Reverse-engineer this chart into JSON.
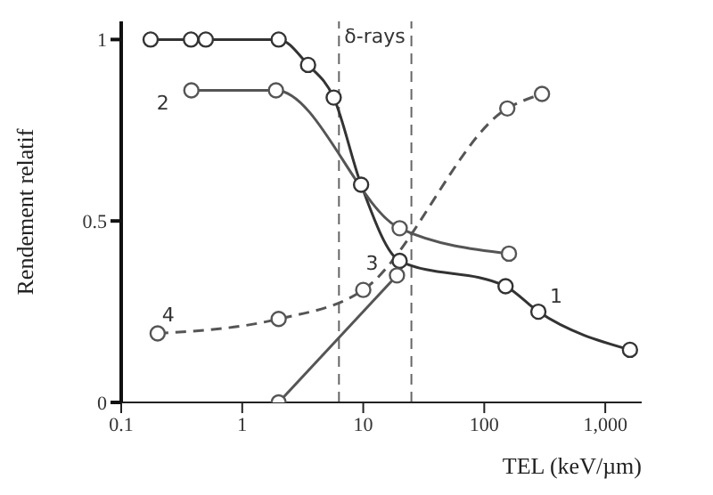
{
  "chart_data": {
    "type": "line",
    "xlabel": "TEL (keV/µm)",
    "ylabel": "Rendement relatif",
    "log": "x",
    "xlim": [
      0.1,
      2000
    ],
    "ylim": [
      0,
      1.05
    ],
    "xticks": [
      0.1,
      1,
      10,
      100,
      {
        "value": 1000,
        "label": "1,000"
      }
    ],
    "yticks": [
      0,
      0.5,
      1
    ],
    "grid": false,
    "legend": false,
    "marker": "circle",
    "series": [
      {
        "name": "1",
        "color": "#333333",
        "x": [
          0.175,
          0.377,
          0.5,
          2,
          3.5,
          5.7,
          9.6,
          20,
          150,
          280,
          1600
        ],
        "values": [
          1,
          1,
          1,
          1,
          0.93,
          0.84,
          0.6,
          0.39,
          0.32,
          0.25,
          0.145
        ]
      },
      {
        "name": "2",
        "color": "#555555",
        "x": [
          0.38,
          1.9,
          20,
          160
        ],
        "values": [
          0.86,
          0.86,
          0.48,
          0.41
        ]
      },
      {
        "name": "3",
        "color": "#555555",
        "x": [
          2,
          19
        ],
        "values": [
          0,
          0.35
        ]
      },
      {
        "name": "4",
        "color": "#555555",
        "line_style": "dashed",
        "x": [
          0.2,
          2,
          10,
          155,
          300
        ],
        "values": [
          0.19,
          0.23,
          0.31,
          0.81,
          0.85
        ]
      }
    ],
    "ref_lines": [
      {
        "axis": "x",
        "value": 6.3,
        "label": "δ-rays",
        "color": "#666666",
        "line_style": "dashed"
      },
      {
        "axis": "x",
        "value": 25,
        "color": "#666666",
        "line_style": "dashed"
      }
    ]
  }
}
